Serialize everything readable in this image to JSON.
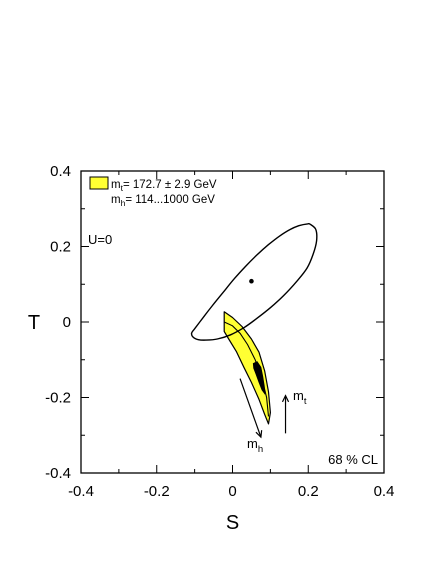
{
  "chart_data": {
    "type": "contour",
    "xlabel": "S",
    "ylabel": "T",
    "xlim": [
      -0.4,
      0.4
    ],
    "ylim": [
      -0.4,
      0.4
    ],
    "x_ticks": [
      {
        "value": -0.4,
        "label": "-0.4"
      },
      {
        "value": -0.2,
        "label": "-0.2"
      },
      {
        "value": 0,
        "label": "0"
      },
      {
        "value": 0.2,
        "label": "0.2"
      },
      {
        "value": 0.4,
        "label": "0.4"
      }
    ],
    "y_ticks": [
      {
        "value": -0.4,
        "label": "-0.4"
      },
      {
        "value": -0.2,
        "label": "-0.2"
      },
      {
        "value": 0,
        "label": "0"
      },
      {
        "value": 0.2,
        "label": "0.2"
      },
      {
        "value": 0.4,
        "label": "0.4"
      }
    ],
    "grid": false,
    "legend": {
      "placement": "top-left",
      "swatch_color": "#ffff33",
      "lines": [
        {
          "prefix": "m",
          "sub": "t",
          "rest": "= 172.7 ± 2.9 GeV"
        },
        {
          "prefix": "m",
          "sub": "h",
          "rest": "= 114...1000 GeV"
        }
      ]
    },
    "annotations": {
      "u_label": "U=0",
      "cl_label": "68 % CL",
      "mh_arrow": {
        "symbol": "m",
        "sub": "h",
        "from": [
          0.02,
          -0.15
        ],
        "to": [
          0.075,
          -0.305
        ]
      },
      "mt_arrow": {
        "symbol": "m",
        "sub": "t",
        "from": [
          0.14,
          -0.295
        ],
        "to": [
          0.14,
          -0.195
        ]
      }
    },
    "fit_ellipse": {
      "center": [
        0.05,
        0.108
      ],
      "points": [
        [
          0.205,
          0.259
        ],
        [
          0.198,
          0.26
        ],
        [
          0.175,
          0.255
        ],
        [
          0.152,
          0.245
        ],
        [
          0.125,
          0.228
        ],
        [
          0.095,
          0.205
        ],
        [
          0.065,
          0.178
        ],
        [
          0.035,
          0.148
        ],
        [
          0.005,
          0.115
        ],
        [
          -0.025,
          0.078
        ],
        [
          -0.055,
          0.041
        ],
        [
          -0.075,
          0.015
        ],
        [
          -0.1,
          -0.018
        ],
        [
          -0.108,
          -0.03
        ],
        [
          -0.104,
          -0.04
        ],
        [
          -0.09,
          -0.047
        ],
        [
          -0.07,
          -0.048
        ],
        [
          -0.04,
          -0.045
        ],
        [
          -0.005,
          -0.034
        ],
        [
          0.03,
          -0.015
        ],
        [
          0.065,
          0.01
        ],
        [
          0.1,
          0.038
        ],
        [
          0.135,
          0.07
        ],
        [
          0.17,
          0.108
        ],
        [
          0.197,
          0.143
        ],
        [
          0.213,
          0.18
        ],
        [
          0.222,
          0.215
        ],
        [
          0.22,
          0.245
        ]
      ]
    },
    "sm_band": {
      "color": "#ffff33",
      "points": [
        [
          -0.022,
          0.027
        ],
        [
          0.0,
          0.012
        ],
        [
          0.025,
          -0.012
        ],
        [
          0.05,
          -0.045
        ],
        [
          0.07,
          -0.08
        ],
        [
          0.085,
          -0.13
        ],
        [
          0.095,
          -0.185
        ],
        [
          0.1,
          -0.24
        ],
        [
          0.095,
          -0.27
        ],
        [
          0.085,
          -0.245
        ],
        [
          0.07,
          -0.205
        ],
        [
          0.05,
          -0.16
        ],
        [
          0.03,
          -0.12
        ],
        [
          0.01,
          -0.078
        ],
        [
          -0.01,
          -0.045
        ],
        [
          -0.022,
          -0.025
        ]
      ],
      "inner_curve": [
        [
          -0.022,
          0.0
        ],
        [
          0.0,
          -0.01
        ],
        [
          0.02,
          -0.03
        ],
        [
          0.04,
          -0.06
        ],
        [
          0.06,
          -0.1
        ],
        [
          0.078,
          -0.15
        ],
        [
          0.09,
          -0.2
        ],
        [
          0.095,
          -0.25
        ]
      ]
    },
    "overlap_region": {
      "color": "#000000",
      "points": [
        [
          0.055,
          -0.11
        ],
        [
          0.065,
          -0.105
        ],
        [
          0.075,
          -0.12
        ],
        [
          0.08,
          -0.145
        ],
        [
          0.084,
          -0.17
        ],
        [
          0.085,
          -0.19
        ],
        [
          0.078,
          -0.18
        ],
        [
          0.07,
          -0.16
        ],
        [
          0.062,
          -0.138
        ],
        [
          0.056,
          -0.122
        ]
      ]
    }
  }
}
